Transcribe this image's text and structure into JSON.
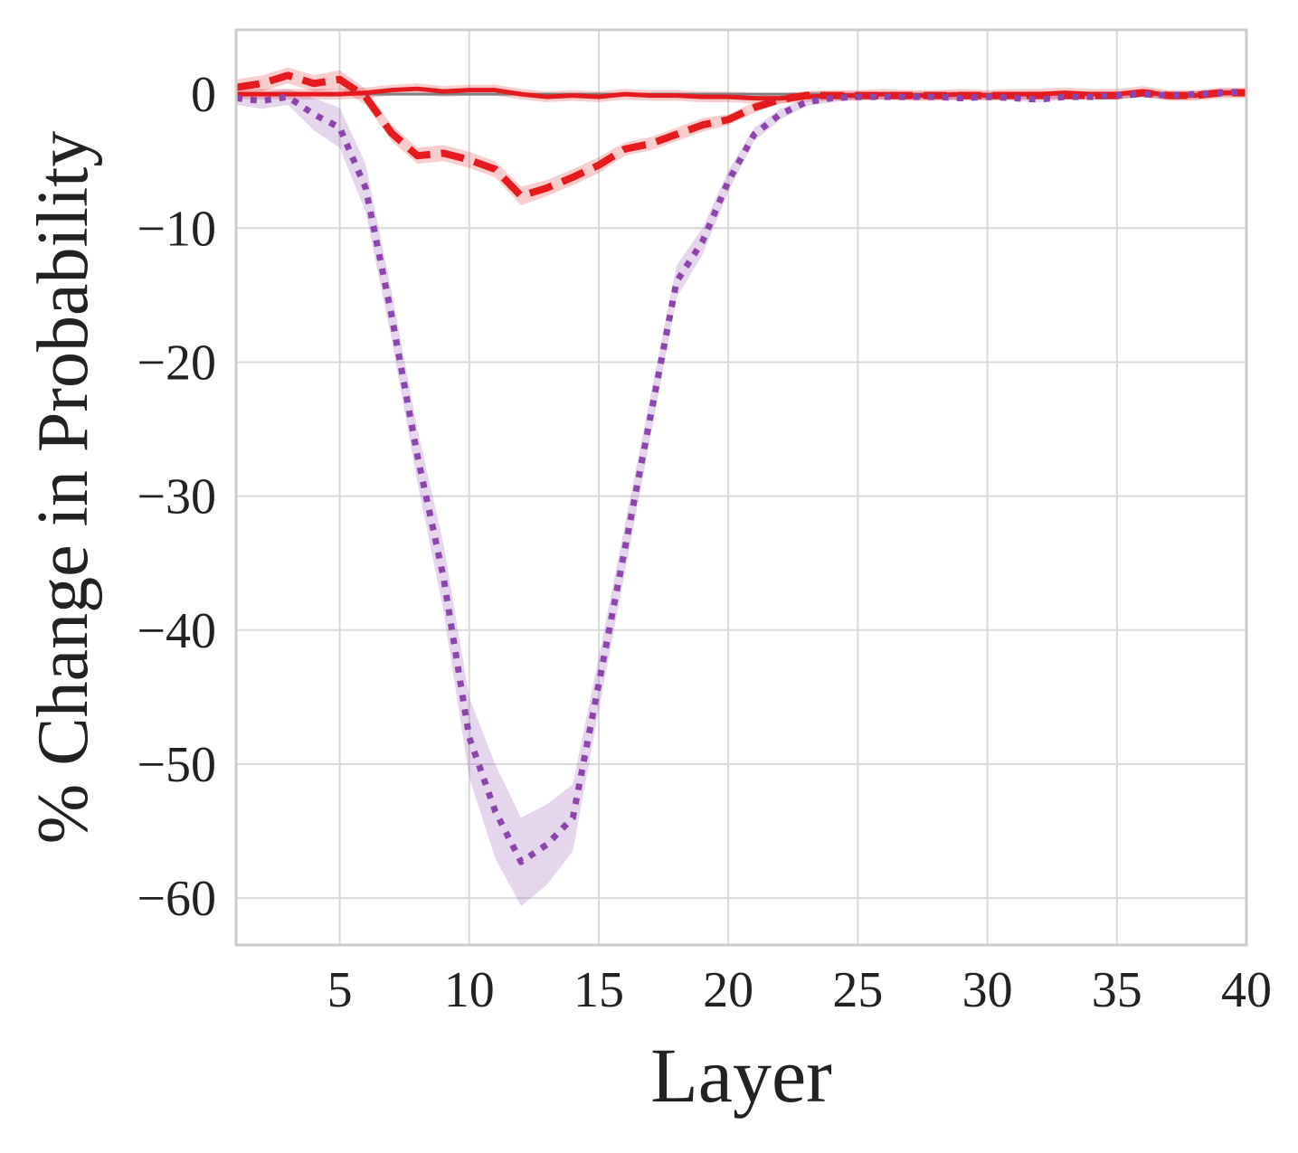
{
  "chart_data": {
    "type": "line",
    "title": "",
    "xlabel": "Layer",
    "ylabel": "% Change in Probability",
    "xlim": [
      1,
      40
    ],
    "ylim": [
      -63.5,
      4.8
    ],
    "grid": true,
    "legend": "none",
    "x_ticks": [
      5,
      10,
      15,
      20,
      25,
      30,
      35,
      40
    ],
    "x_tick_labels": [
      "5",
      "10",
      "15",
      "20",
      "25",
      "30",
      "35",
      "40"
    ],
    "y_ticks": [
      0,
      -10,
      -20,
      -30,
      -40,
      -50,
      -60
    ],
    "y_tick_labels": [
      "0",
      "−10",
      "−20",
      "−30",
      "−40",
      "−50",
      "−60"
    ],
    "colors": {
      "grid": "#d9d9d9",
      "frame": "#cccccc",
      "text": "#222222",
      "zero_line": "#7f7f7f"
    },
    "series": [
      {
        "style": "solid",
        "color": "#e41a1c",
        "x": [
          1,
          2,
          3,
          4,
          5,
          6,
          7,
          8,
          9,
          10,
          11,
          12,
          13,
          14,
          15,
          16,
          17,
          18,
          19,
          20,
          21,
          22,
          23,
          24,
          25,
          26,
          27,
          28,
          29,
          30,
          31,
          32,
          33,
          34,
          35,
          36,
          37,
          38,
          39,
          40
        ],
        "y": [
          0,
          0,
          0,
          0,
          0,
          0.1,
          0.3,
          0.4,
          0.2,
          0.3,
          0.3,
          0,
          -0.2,
          -0.1,
          -0.2,
          0,
          -0.1,
          -0.1,
          -0.2,
          -0.2,
          -0.3,
          -0.3,
          -0.2,
          -0.1,
          -0.1,
          0,
          -0.1,
          -0.1,
          0,
          -0.1,
          0,
          0,
          0.1,
          0,
          0,
          0.2,
          -0.1,
          -0.1,
          0.1,
          0.1
        ],
        "band": [
          0.4,
          0.4,
          0.4,
          0.4,
          0.4,
          0.4,
          0.4,
          0.4,
          0.4,
          0.4,
          0.4,
          0.4,
          0.4,
          0.4,
          0.4,
          0.4,
          0.4,
          0.4,
          0.4,
          0.4,
          0.4,
          0.4,
          0.4,
          0.4,
          0.4,
          0.4,
          0.4,
          0.4,
          0.4,
          0.4,
          0.4,
          0.4,
          0.4,
          0.4,
          0.4,
          0.4,
          0.4,
          0.4,
          0.4,
          0.4
        ]
      },
      {
        "style": "dashed",
        "color": "#e41a1c",
        "x": [
          1,
          2,
          3,
          4,
          5,
          6,
          7,
          8,
          9,
          10,
          11,
          12,
          13,
          14,
          15,
          16,
          17,
          18,
          19,
          20,
          21,
          22,
          23,
          24,
          25,
          26,
          27,
          28,
          29,
          30,
          31,
          32,
          33,
          34,
          35,
          36,
          37,
          38,
          39,
          40
        ],
        "y": [
          0.5,
          0.8,
          1.4,
          0.8,
          1.1,
          -0.2,
          -2.9,
          -4.6,
          -4.4,
          -4.9,
          -5.6,
          -7.6,
          -7.0,
          -6.2,
          -5.3,
          -4.1,
          -3.7,
          -3.0,
          -2.3,
          -1.9,
          -1.0,
          -0.4,
          -0.1,
          -0.1,
          -0.1,
          -0.1,
          -0.1,
          -0.1,
          -0.1,
          -0.1,
          -0.1,
          -0.1,
          -0.1,
          -0.1,
          -0.1,
          0.1,
          -0.1,
          -0.1,
          0.1,
          0.1
        ],
        "band": [
          0.6,
          0.6,
          0.6,
          0.6,
          0.7,
          0.6,
          0.6,
          0.6,
          0.6,
          0.6,
          0.6,
          0.7,
          0.6,
          0.6,
          0.6,
          0.5,
          0.5,
          0.5,
          0.5,
          0.4,
          0.4,
          0.3,
          0.3,
          0.3,
          0.3,
          0.3,
          0.3,
          0.3,
          0.3,
          0.3,
          0.3,
          0.3,
          0.3,
          0.3,
          0.3,
          0.3,
          0.3,
          0.3,
          0.3,
          0.3
        ]
      },
      {
        "style": "dotted",
        "color": "#8e44ad",
        "x": [
          1,
          2,
          3,
          4,
          5,
          6,
          7,
          8,
          9,
          10,
          11,
          12,
          13,
          14,
          15,
          16,
          17,
          18,
          19,
          20,
          21,
          22,
          23,
          24,
          25,
          26,
          27,
          28,
          29,
          30,
          31,
          32,
          33,
          34,
          35,
          36,
          37,
          38,
          39,
          40
        ],
        "y": [
          -0.3,
          -0.5,
          -0.2,
          -1.5,
          -2.5,
          -7.0,
          -16.5,
          -27.0,
          -36.0,
          -48.0,
          -53.5,
          -57.3,
          -56.0,
          -54.0,
          -44.0,
          -34.0,
          -24.0,
          -14.0,
          -11.0,
          -6.5,
          -3.0,
          -1.5,
          -0.6,
          -0.3,
          -0.2,
          -0.2,
          -0.2,
          -0.2,
          -0.3,
          -0.2,
          -0.3,
          -0.4,
          -0.2,
          -0.2,
          -0.1,
          0,
          -0.1,
          0,
          0.1,
          0.2
        ],
        "band": [
          0.5,
          0.6,
          0.6,
          1.2,
          1.5,
          1.8,
          1.8,
          2.0,
          2.5,
          3.0,
          3.5,
          3.3,
          3.0,
          2.5,
          2.0,
          1.8,
          1.5,
          1.2,
          1.0,
          0.8,
          0.5,
          0.4,
          0.3,
          0.3,
          0.2,
          0.2,
          0.2,
          0.2,
          0.2,
          0.2,
          0.2,
          0.2,
          0.2,
          0.2,
          0.2,
          0.2,
          0.2,
          0.2,
          0.2,
          0.2
        ]
      }
    ]
  }
}
